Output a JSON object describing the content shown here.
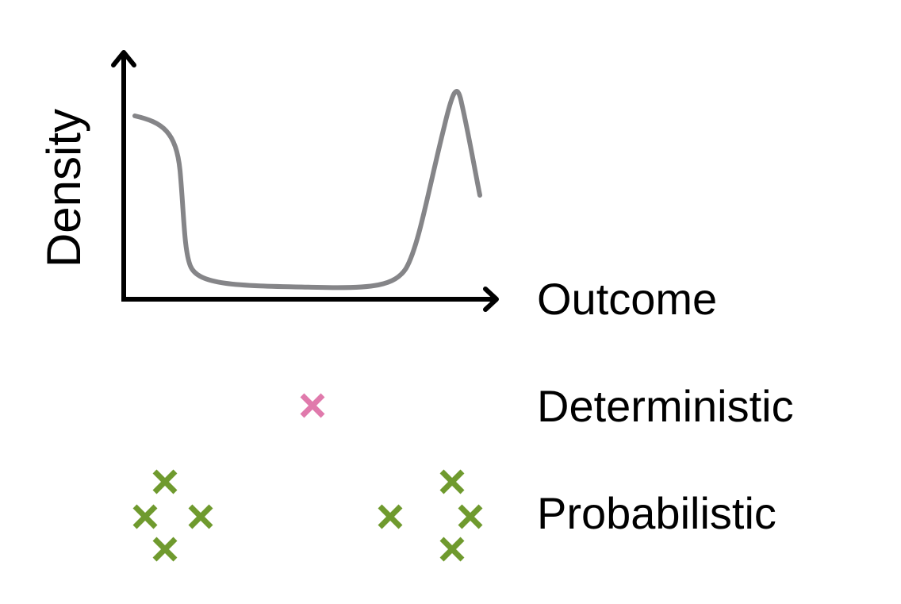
{
  "diagram": {
    "y_axis_label": "Density",
    "x_axis_label": "Outcome",
    "rows": [
      {
        "label": "Deterministic",
        "marker_color": "#e07aac",
        "marker_icon": "cross-icon"
      },
      {
        "label": "Probabilistic",
        "marker_color": "#6f9a2e",
        "marker_icon": "cross-icon"
      }
    ],
    "curve_color": "#858588",
    "axis_color": "#000000"
  }
}
